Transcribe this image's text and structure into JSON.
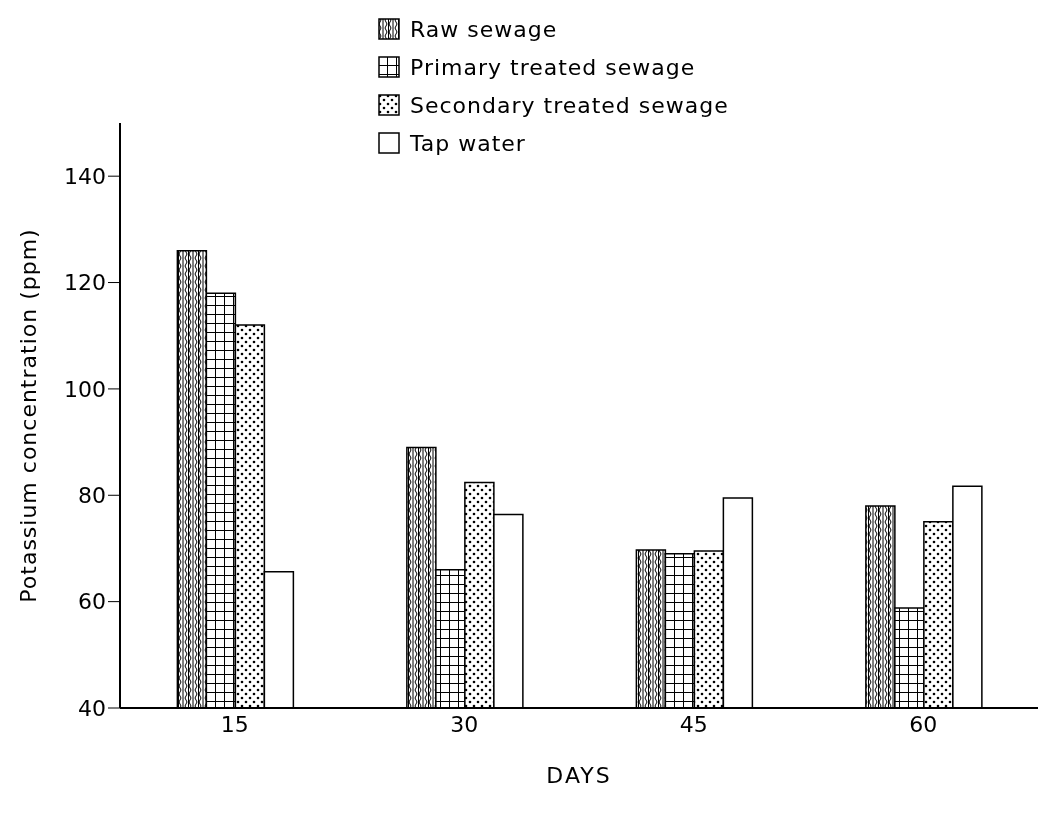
{
  "chart_data": {
    "type": "bar",
    "xlabel": "DAYS",
    "ylabel": "Potassium concentration (ppm)",
    "categories": [
      "15",
      "30",
      "45",
      "60"
    ],
    "series": [
      {
        "name": "Raw sewage",
        "color": "#000000",
        "values": [
          126,
          89,
          69.7,
          78
        ]
      },
      {
        "name": "Primary treated sewage",
        "color": "#000000",
        "values": [
          118,
          66,
          69,
          58.8
        ]
      },
      {
        "name": "Secondary treated sewage",
        "color": "#000000",
        "values": [
          112,
          82.4,
          69.5,
          75
        ]
      },
      {
        "name": "Tap water",
        "color": "#000000",
        "values": [
          65.6,
          76.4,
          79.5,
          81.7
        ]
      }
    ],
    "ylim": [
      40,
      150
    ],
    "yticks": [
      40,
      60,
      80,
      100,
      120,
      140
    ],
    "grid": false,
    "legend": "top"
  }
}
